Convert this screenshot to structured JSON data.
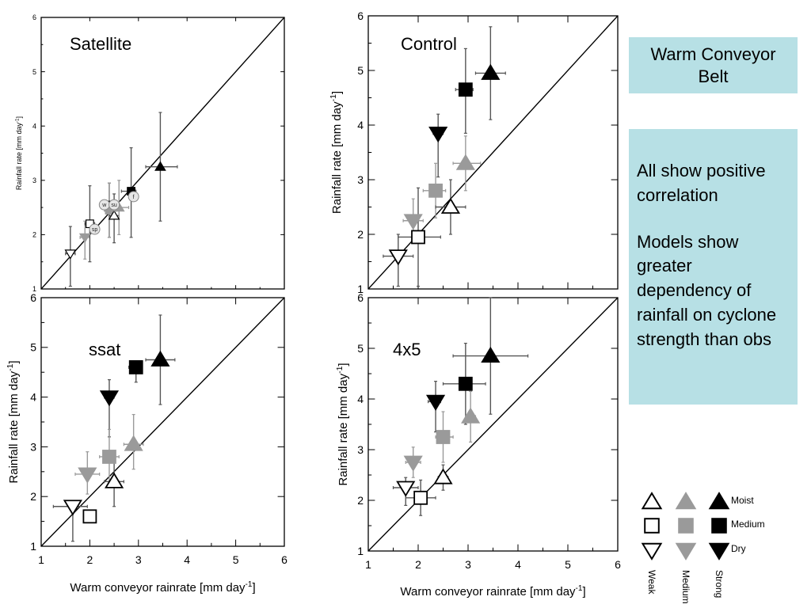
{
  "chart_data": [
    {
      "type": "scatter",
      "panel_label": "Satellite",
      "xlabel": "",
      "ylabel": "Rainfall rate [mm day",
      "ylabel_sup": "-1",
      "xlim": [
        1,
        6
      ],
      "ylim": [
        1,
        6
      ],
      "xticks": [
        "1",
        "2",
        "3",
        "4",
        "5",
        "6"
      ],
      "yticks": [
        "1",
        "2",
        "3",
        "4",
        "5",
        "6"
      ],
      "show_x_ticklabels": false,
      "reference_line": "1:1",
      "points": [
        {
          "x": 1.6,
          "y": 1.65,
          "shape": "down",
          "fill": "white",
          "xerr": [
            0.1,
            0.1
          ],
          "yerr": [
            0.6,
            0.5
          ]
        },
        {
          "x": 1.9,
          "y": 1.95,
          "shape": "down",
          "fill": "grey",
          "xerr": [
            0.1,
            0.1
          ],
          "yerr": [
            0.4,
            0.3
          ]
        },
        {
          "x": 2.4,
          "y": 2.55,
          "shape": "down",
          "fill": "black",
          "xerr": [
            0.2,
            0.1
          ],
          "yerr": [
            0.6,
            0.4
          ]
        },
        {
          "x": 2.0,
          "y": 2.2,
          "shape": "square",
          "fill": "white",
          "xerr": [
            0.1,
            0.1
          ],
          "yerr": [
            0.7,
            0.7
          ]
        },
        {
          "x": 2.4,
          "y": 2.45,
          "shape": "square",
          "fill": "grey",
          "xerr": [
            0.1,
            0.15
          ],
          "yerr": [
            0.5,
            0.5
          ]
        },
        {
          "x": 2.85,
          "y": 2.8,
          "shape": "square",
          "fill": "black",
          "xerr": [
            0.2,
            0.1
          ],
          "yerr": [
            0.85,
            0.8
          ]
        },
        {
          "x": 2.5,
          "y": 2.35,
          "shape": "up",
          "fill": "white",
          "xerr": [
            0.1,
            0.1
          ],
          "yerr": [
            0.5,
            0.4
          ]
        },
        {
          "x": 2.6,
          "y": 2.5,
          "shape": "up",
          "fill": "grey",
          "xerr": [
            0.15,
            0.2
          ],
          "yerr": [
            0.5,
            0.5
          ]
        },
        {
          "x": 3.45,
          "y": 3.25,
          "shape": "up",
          "fill": "black",
          "xerr": [
            0.3,
            0.35
          ],
          "yerr": [
            1.0,
            1.0
          ]
        }
      ],
      "season_points": [
        {
          "x": 2.1,
          "y": 2.1,
          "label": "sp"
        },
        {
          "x": 2.3,
          "y": 2.55,
          "label": "w"
        },
        {
          "x": 2.5,
          "y": 2.55,
          "label": "su"
        },
        {
          "x": 2.9,
          "y": 2.7,
          "label": "f"
        }
      ]
    },
    {
      "type": "scatter",
      "panel_label": "Control",
      "xlabel": "",
      "ylabel": "Rainfall rate [mm day",
      "ylabel_sup": "-1",
      "xlim": [
        1,
        6
      ],
      "ylim": [
        1,
        6
      ],
      "xticks": [
        "1",
        "2",
        "3",
        "4",
        "5",
        "6"
      ],
      "yticks": [
        "1",
        "2",
        "3",
        "4",
        "5",
        "6"
      ],
      "show_x_ticklabels": false,
      "reference_line": "1:1",
      "points": [
        {
          "x": 1.6,
          "y": 1.6,
          "shape": "down",
          "fill": "white",
          "xerr": [
            0.3,
            0.3
          ],
          "yerr": [
            0.55,
            0.4
          ]
        },
        {
          "x": 1.9,
          "y": 2.25,
          "shape": "down",
          "fill": "grey",
          "xerr": [
            0.2,
            0.2
          ],
          "yerr": [
            0.3,
            0.4
          ]
        },
        {
          "x": 2.4,
          "y": 3.85,
          "shape": "down",
          "fill": "black",
          "xerr": [
            0.1,
            0.1
          ],
          "yerr": [
            0.8,
            0.35
          ]
        },
        {
          "x": 2.0,
          "y": 1.95,
          "shape": "square",
          "fill": "white",
          "xerr": [
            0.4,
            0.45
          ],
          "yerr": [
            0.9,
            0.9
          ]
        },
        {
          "x": 2.35,
          "y": 2.8,
          "shape": "square",
          "fill": "grey",
          "xerr": [
            0.25,
            0.2
          ],
          "yerr": [
            0.5,
            0.5
          ]
        },
        {
          "x": 2.95,
          "y": 4.65,
          "shape": "square",
          "fill": "black",
          "xerr": [
            0.2,
            0.15
          ],
          "yerr": [
            0.8,
            0.75
          ]
        },
        {
          "x": 2.65,
          "y": 2.5,
          "shape": "up",
          "fill": "white",
          "xerr": [
            0.3,
            0.3
          ],
          "yerr": [
            0.5,
            0.5
          ]
        },
        {
          "x": 2.95,
          "y": 3.3,
          "shape": "up",
          "fill": "grey",
          "xerr": [
            0.25,
            0.3
          ],
          "yerr": [
            0.5,
            0.5
          ]
        },
        {
          "x": 3.45,
          "y": 4.95,
          "shape": "up",
          "fill": "black",
          "xerr": [
            0.3,
            0.3
          ],
          "yerr": [
            0.85,
            0.85
          ]
        }
      ]
    },
    {
      "type": "scatter",
      "panel_label": "ssat",
      "xlabel": "Warm conveyor rainrate [mm day",
      "xlabel_sup": "-1",
      "xlabel_tail": "]",
      "ylabel": "Rainfall rate [mm day",
      "ylabel_sup": "-1",
      "xlim": [
        1,
        6
      ],
      "ylim": [
        1,
        6
      ],
      "xticks": [
        "1",
        "2",
        "3",
        "4",
        "5",
        "6"
      ],
      "yticks": [
        "1",
        "2",
        "3",
        "4",
        "5",
        "6"
      ],
      "show_x_ticklabels": true,
      "reference_line": "1:1",
      "points": [
        {
          "x": 1.65,
          "y": 1.8,
          "shape": "down",
          "fill": "white",
          "xerr": [
            0.4,
            0.3
          ],
          "yerr": [
            0.7,
            0.0
          ]
        },
        {
          "x": 1.95,
          "y": 2.45,
          "shape": "down",
          "fill": "grey",
          "xerr": [
            0.25,
            0.25
          ],
          "yerr": [
            0.4,
            0.45
          ]
        },
        {
          "x": 2.4,
          "y": 4.0,
          "shape": "down",
          "fill": "black",
          "xerr": [
            0.1,
            0.1
          ],
          "yerr": [
            0.8,
            0.35
          ]
        },
        {
          "x": 2.0,
          "y": 1.6,
          "shape": "square",
          "fill": "white",
          "xerr": [
            0.0,
            0.0
          ],
          "yerr": [
            0.0,
            0.0
          ]
        },
        {
          "x": 2.4,
          "y": 2.8,
          "shape": "square",
          "fill": "grey",
          "xerr": [
            0.2,
            0.2
          ],
          "yerr": [
            0.55,
            0.55
          ]
        },
        {
          "x": 2.95,
          "y": 4.6,
          "shape": "square",
          "fill": "black",
          "xerr": [
            0.15,
            0.1
          ],
          "yerr": [
            0.3,
            0.0
          ]
        },
        {
          "x": 2.5,
          "y": 2.3,
          "shape": "up",
          "fill": "white",
          "xerr": [
            0.2,
            0.2
          ],
          "yerr": [
            0.5,
            0.4
          ]
        },
        {
          "x": 2.9,
          "y": 3.05,
          "shape": "up",
          "fill": "grey",
          "xerr": [
            0.2,
            0.2
          ],
          "yerr": [
            0.5,
            0.6
          ]
        },
        {
          "x": 3.45,
          "y": 4.75,
          "shape": "up",
          "fill": "black",
          "xerr": [
            0.3,
            0.3
          ],
          "yerr": [
            0.9,
            0.9
          ]
        }
      ]
    },
    {
      "type": "scatter",
      "panel_label": "4x5",
      "xlabel": "Warm conveyor rainrate [mm day",
      "xlabel_sup": "-1",
      "xlabel_tail": "]",
      "ylabel": "Rainfall rate [mm day",
      "ylabel_sup": "-1",
      "xlim": [
        1,
        6
      ],
      "ylim": [
        1,
        6
      ],
      "xticks": [
        "1",
        "2",
        "3",
        "4",
        "5",
        "6"
      ],
      "yticks": [
        "1",
        "2",
        "3",
        "4",
        "5",
        "6"
      ],
      "show_x_ticklabels": true,
      "reference_line": "1:1",
      "points": [
        {
          "x": 1.75,
          "y": 2.25,
          "shape": "down",
          "fill": "white",
          "xerr": [
            0.25,
            0.25
          ],
          "yerr": [
            0.35,
            0.2
          ]
        },
        {
          "x": 1.9,
          "y": 2.75,
          "shape": "down",
          "fill": "grey",
          "xerr": [
            0.15,
            0.15
          ],
          "yerr": [
            0.3,
            0.3
          ]
        },
        {
          "x": 2.35,
          "y": 3.95,
          "shape": "down",
          "fill": "black",
          "xerr": [
            0.15,
            0.1
          ],
          "yerr": [
            0.6,
            0.4
          ]
        },
        {
          "x": 2.05,
          "y": 2.05,
          "shape": "square",
          "fill": "white",
          "xerr": [
            0.3,
            0.3
          ],
          "yerr": [
            0.35,
            0.35
          ]
        },
        {
          "x": 2.5,
          "y": 3.25,
          "shape": "square",
          "fill": "grey",
          "xerr": [
            0.15,
            0.2
          ],
          "yerr": [
            0.5,
            0.5
          ]
        },
        {
          "x": 2.95,
          "y": 4.3,
          "shape": "square",
          "fill": "black",
          "xerr": [
            0.45,
            0.4
          ],
          "yerr": [
            0.8,
            0.8
          ]
        },
        {
          "x": 2.5,
          "y": 2.45,
          "shape": "up",
          "fill": "white",
          "xerr": [
            0.1,
            0.1
          ],
          "yerr": [
            0.25,
            0.25
          ]
        },
        {
          "x": 3.05,
          "y": 3.65,
          "shape": "up",
          "fill": "grey",
          "xerr": [
            0.1,
            0.1
          ],
          "yerr": [
            0.5,
            0.5
          ]
        },
        {
          "x": 3.45,
          "y": 4.85,
          "shape": "up",
          "fill": "black",
          "xerr": [
            0.75,
            0.75
          ],
          "yerr": [
            1.15,
            1.15
          ]
        }
      ]
    }
  ],
  "legend": {
    "rows": [
      "Moist",
      "Medium",
      "Dry"
    ],
    "columns": [
      "Weak",
      "Medium",
      "Strong"
    ]
  },
  "colors": {
    "grey": "#9a9a9a",
    "black": "#000000",
    "white": "#ffffff",
    "box_bg": "#b7e0e5"
  },
  "info_box": {
    "title": "Warm Conveyor Belt",
    "line1": "All show positive correlation",
    "line2": "Models show greater dependency of rainfall on cyclone strength than obs"
  }
}
